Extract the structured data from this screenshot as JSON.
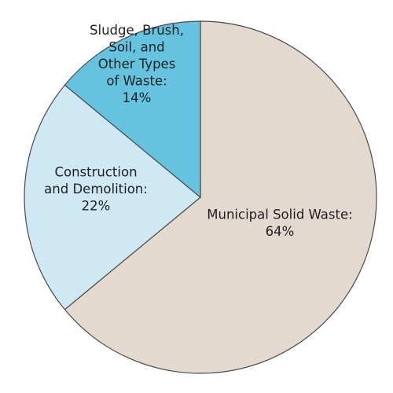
{
  "chart_data": {
    "type": "pie",
    "title": "",
    "slices": [
      {
        "label_lines": [
          "Municipal Solid Waste:",
          "64%"
        ],
        "value": 64,
        "color": "#e4d9cf"
      },
      {
        "label_lines": [
          "Construction",
          "and Demolition:",
          "22%"
        ],
        "value": 22,
        "color": "#cfe9f4"
      },
      {
        "label_lines": [
          "Sludge, Brush,",
          "Soil, and",
          "Other Types",
          "of Waste:",
          "14%"
        ],
        "value": 14,
        "color": "#66c3df"
      }
    ],
    "start_angle_deg": 0,
    "direction": "clockwise"
  }
}
